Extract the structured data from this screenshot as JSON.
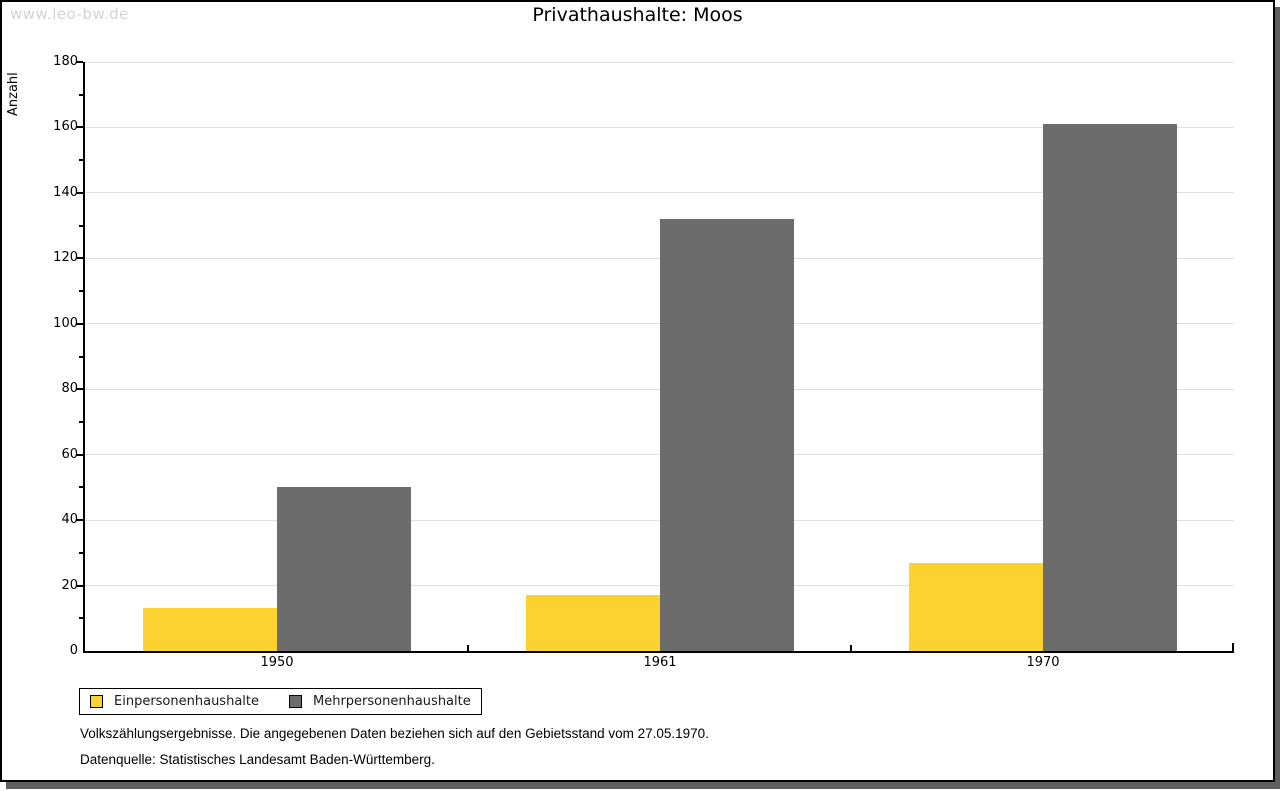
{
  "watermark": "www.leo-bw.de",
  "title": "Privathaushalte: Moos",
  "chart_data": {
    "type": "bar",
    "title": "Privathaushalte: Moos",
    "categories": [
      "1950",
      "1961",
      "1970"
    ],
    "series": [
      {
        "name": "Einpersonenhaushalte",
        "color": "#FBD22F",
        "values": [
          13,
          17,
          27
        ]
      },
      {
        "name": "Mehrpersonenhaushalte",
        "color": "#6C6C6C",
        "values": [
          50,
          132,
          161
        ]
      }
    ],
    "xlabel": "",
    "ylabel": "Anzahl",
    "ylim": [
      0,
      180
    ],
    "ytick_step": 20,
    "yminor_step": 10,
    "grid": true,
    "grid_color": "#E0E0E0",
    "axis_color": "#000000",
    "legend_position": "bottom-left"
  },
  "footnotes": [
    "Volkszählungsergebnisse. Die angegebenen Daten beziehen sich auf den Gebietsstand vom 27.05.1970.",
    "Datenquelle: Statistisches Landesamt Baden-Württemberg."
  ]
}
